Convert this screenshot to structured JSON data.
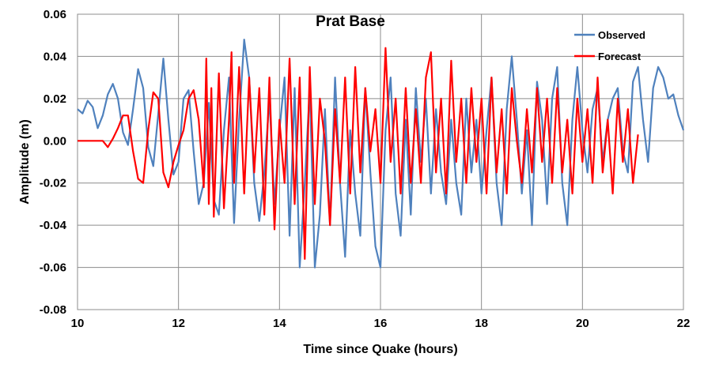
{
  "chart_data": {
    "type": "line",
    "title": "Prat Base",
    "xlabel": "Time since Quake (hours)",
    "ylabel": "Amplitude (m)",
    "xlim": [
      10,
      22
    ],
    "ylim": [
      -0.08,
      0.06
    ],
    "xticks": [
      10,
      12,
      14,
      16,
      18,
      20,
      22
    ],
    "yticks": [
      -0.08,
      -0.06,
      -0.04,
      -0.02,
      0.0,
      0.02,
      0.04,
      0.06
    ],
    "xtick_labels": [
      "10",
      "12",
      "14",
      "16",
      "18",
      "20",
      "22"
    ],
    "ytick_labels": [
      "-0.08",
      "-0.06",
      "-0.04",
      "-0.02",
      "0.00",
      "0.02",
      "0.04",
      "0.06"
    ],
    "grid": true,
    "legend_position": "top-right",
    "series": [
      {
        "name": "Observed",
        "color": "#4f81bd",
        "x": [
          10.0,
          10.1,
          10.2,
          10.3,
          10.4,
          10.5,
          10.6,
          10.7,
          10.8,
          10.9,
          11.0,
          11.1,
          11.2,
          11.3,
          11.4,
          11.5,
          11.6,
          11.7,
          11.8,
          11.9,
          12.0,
          12.1,
          12.2,
          12.3,
          12.4,
          12.5,
          12.6,
          12.7,
          12.8,
          12.9,
          13.0,
          13.1,
          13.2,
          13.3,
          13.4,
          13.5,
          13.6,
          13.7,
          13.8,
          13.9,
          14.0,
          14.1,
          14.2,
          14.3,
          14.4,
          14.5,
          14.6,
          14.7,
          14.8,
          14.9,
          15.0,
          15.1,
          15.2,
          15.3,
          15.4,
          15.5,
          15.6,
          15.7,
          15.8,
          15.9,
          16.0,
          16.1,
          16.2,
          16.3,
          16.4,
          16.5,
          16.6,
          16.7,
          16.8,
          16.9,
          17.0,
          17.1,
          17.2,
          17.3,
          17.4,
          17.5,
          17.6,
          17.7,
          17.8,
          17.9,
          18.0,
          18.1,
          18.2,
          18.3,
          18.4,
          18.5,
          18.6,
          18.7,
          18.8,
          18.9,
          19.0,
          19.1,
          19.2,
          19.3,
          19.4,
          19.5,
          19.6,
          19.7,
          19.8,
          19.9,
          20.0,
          20.1,
          20.2,
          20.3,
          20.4,
          20.5,
          20.6,
          20.7,
          20.8,
          20.9,
          21.0,
          21.1,
          21.2,
          21.3,
          21.4,
          21.5,
          21.6,
          21.7,
          21.8,
          21.9,
          22.0
        ],
        "values": [
          0.015,
          0.013,
          0.019,
          0.016,
          0.006,
          0.012,
          0.022,
          0.027,
          0.02,
          0.004,
          -0.002,
          0.015,
          0.034,
          0.025,
          -0.003,
          -0.012,
          0.013,
          0.039,
          0.01,
          -0.016,
          -0.01,
          0.02,
          0.024,
          -0.005,
          -0.03,
          -0.02,
          0.018,
          -0.028,
          -0.035,
          0.005,
          0.03,
          -0.039,
          0.01,
          0.048,
          0.03,
          -0.02,
          -0.038,
          -0.015,
          0.02,
          -0.03,
          0.005,
          0.03,
          -0.045,
          0.025,
          -0.06,
          -0.02,
          0.025,
          -0.06,
          -0.035,
          0.015,
          -0.04,
          0.03,
          -0.02,
          -0.055,
          0.005,
          -0.025,
          -0.045,
          0.025,
          -0.015,
          -0.05,
          -0.06,
          0.005,
          0.03,
          -0.025,
          -0.045,
          0.01,
          -0.035,
          0.025,
          -0.01,
          0.02,
          -0.025,
          0.015,
          -0.015,
          -0.03,
          0.01,
          -0.02,
          -0.035,
          0.02,
          -0.015,
          0.01,
          -0.025,
          0.005,
          0.03,
          -0.02,
          -0.04,
          0.015,
          0.04,
          0.01,
          -0.025,
          0.005,
          -0.04,
          0.028,
          0.01,
          -0.03,
          0.02,
          0.035,
          -0.02,
          -0.04,
          0.01,
          0.035,
          0.005,
          -0.015,
          0.015,
          0.025,
          -0.01,
          0.01,
          0.02,
          0.025,
          -0.005,
          -0.015,
          0.028,
          0.035,
          0.01,
          -0.01,
          0.025,
          0.035,
          0.03,
          0.02,
          0.022,
          0.012,
          0.005
        ]
      },
      {
        "name": "Forecast",
        "color": "#ff0000",
        "x": [
          10.0,
          10.5,
          10.6,
          10.7,
          10.8,
          10.9,
          11.0,
          11.1,
          11.2,
          11.3,
          11.4,
          11.5,
          11.6,
          11.7,
          11.8,
          11.9,
          12.0,
          12.1,
          12.2,
          12.3,
          12.4,
          12.5,
          12.55,
          12.6,
          12.65,
          12.7,
          12.8,
          12.9,
          13.0,
          13.05,
          13.1,
          13.2,
          13.3,
          13.4,
          13.5,
          13.6,
          13.7,
          13.8,
          13.9,
          14.0,
          14.1,
          14.2,
          14.3,
          14.4,
          14.5,
          14.6,
          14.7,
          14.8,
          14.9,
          15.0,
          15.1,
          15.2,
          15.3,
          15.4,
          15.5,
          15.6,
          15.7,
          15.8,
          15.9,
          16.0,
          16.1,
          16.2,
          16.3,
          16.4,
          16.5,
          16.6,
          16.7,
          16.8,
          16.9,
          17.0,
          17.1,
          17.2,
          17.3,
          17.4,
          17.5,
          17.6,
          17.7,
          17.8,
          17.9,
          18.0,
          18.1,
          18.2,
          18.3,
          18.4,
          18.5,
          18.6,
          18.7,
          18.8,
          18.9,
          19.0,
          19.1,
          19.2,
          19.3,
          19.4,
          19.5,
          19.6,
          19.7,
          19.8,
          19.9,
          20.0,
          20.1,
          20.2,
          20.3,
          20.4,
          20.5,
          20.6,
          20.7,
          20.8,
          20.9,
          21.0,
          21.1
        ],
        "values": [
          0.0,
          0.0,
          -0.003,
          0.001,
          0.006,
          0.012,
          0.012,
          -0.005,
          -0.018,
          -0.02,
          0.005,
          0.023,
          0.02,
          -0.015,
          -0.022,
          -0.01,
          -0.002,
          0.005,
          0.02,
          0.024,
          0.01,
          -0.022,
          0.039,
          -0.03,
          0.025,
          -0.036,
          0.032,
          -0.032,
          0.01,
          0.042,
          -0.02,
          0.035,
          -0.025,
          0.03,
          -0.015,
          0.025,
          -0.035,
          0.03,
          -0.042,
          0.01,
          -0.02,
          0.039,
          -0.03,
          0.03,
          -0.056,
          0.035,
          -0.03,
          0.02,
          0.0,
          -0.04,
          0.015,
          -0.02,
          0.03,
          -0.025,
          0.035,
          -0.015,
          0.025,
          -0.005,
          0.015,
          -0.02,
          0.044,
          -0.01,
          0.02,
          -0.025,
          0.025,
          -0.02,
          0.015,
          -0.02,
          0.03,
          0.042,
          -0.015,
          0.02,
          -0.025,
          0.038,
          -0.01,
          0.02,
          -0.02,
          0.025,
          -0.01,
          0.02,
          -0.025,
          0.03,
          -0.015,
          0.015,
          -0.025,
          0.025,
          0.0,
          -0.02,
          0.015,
          -0.015,
          0.025,
          -0.01,
          0.02,
          -0.02,
          0.025,
          -0.015,
          0.01,
          -0.025,
          0.02,
          -0.01,
          0.015,
          -0.02,
          0.03,
          -0.015,
          0.01,
          -0.025,
          0.02,
          -0.01,
          0.015,
          -0.02,
          0.003
        ]
      }
    ]
  }
}
